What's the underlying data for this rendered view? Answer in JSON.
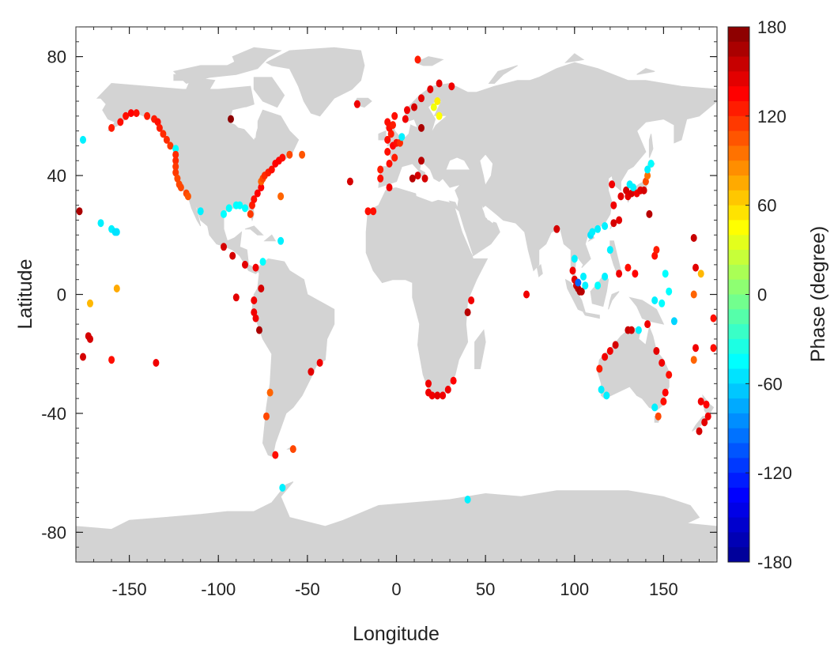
{
  "chart_data": {
    "type": "scatter",
    "title": "",
    "xlabel": "Longitude",
    "ylabel": "Latitude",
    "xlim": [
      -180,
      180
    ],
    "ylim": [
      -90,
      90
    ],
    "xticks": [
      -150,
      -100,
      -50,
      0,
      50,
      100,
      150
    ],
    "yticks": [
      80,
      40,
      0,
      -40,
      -80
    ],
    "grid": false,
    "basemap": "world land masses (light gray)",
    "colorbar": {
      "label": "Phase (degree)",
      "range": [
        -180,
        180
      ],
      "ticks": [
        180,
        120,
        60,
        0,
        -60,
        -120,
        -180
      ],
      "colormap": "jet",
      "colors": [
        "#00008f",
        "#0000ff",
        "#0080ff",
        "#00ffff",
        "#80ff80",
        "#ffff00",
        "#ff8000",
        "#ff0000",
        "#800000"
      ]
    },
    "points": [
      {
        "lon": -178,
        "lat": 28,
        "phase": 165
      },
      {
        "lon": -176,
        "lat": -21,
        "phase": 150
      },
      {
        "lon": -173,
        "lat": -14,
        "phase": 150
      },
      {
        "lon": -172,
        "lat": -15,
        "phase": 150
      },
      {
        "lon": -172,
        "lat": -3,
        "phase": 70
      },
      {
        "lon": -176,
        "lat": 52,
        "phase": -50
      },
      {
        "lon": -166,
        "lat": 24,
        "phase": -50
      },
      {
        "lon": -160,
        "lat": 22,
        "phase": -50
      },
      {
        "lon": -158,
        "lat": 21,
        "phase": -55
      },
      {
        "lon": -157,
        "lat": 21,
        "phase": -55
      },
      {
        "lon": -157,
        "lat": 2,
        "phase": 75
      },
      {
        "lon": -160,
        "lat": -22,
        "phase": 130
      },
      {
        "lon": -135,
        "lat": -23,
        "phase": 140
      },
      {
        "lon": -160,
        "lat": 56,
        "phase": 125
      },
      {
        "lon": -155,
        "lat": 58,
        "phase": 130
      },
      {
        "lon": -152,
        "lat": 60,
        "phase": 130
      },
      {
        "lon": -149,
        "lat": 61,
        "phase": 135
      },
      {
        "lon": -146,
        "lat": 61,
        "phase": 130
      },
      {
        "lon": -140,
        "lat": 60,
        "phase": 125
      },
      {
        "lon": -136,
        "lat": 59,
        "phase": 125
      },
      {
        "lon": -134,
        "lat": 58,
        "phase": 130
      },
      {
        "lon": -133,
        "lat": 56,
        "phase": 125
      },
      {
        "lon": -131,
        "lat": 54,
        "phase": 120
      },
      {
        "lon": -129,
        "lat": 52,
        "phase": 120
      },
      {
        "lon": -127,
        "lat": 50,
        "phase": 115
      },
      {
        "lon": -124,
        "lat": 49,
        "phase": -45
      },
      {
        "lon": -124,
        "lat": 47,
        "phase": 120
      },
      {
        "lon": -124,
        "lat": 45,
        "phase": 120
      },
      {
        "lon": -124,
        "lat": 43,
        "phase": 115
      },
      {
        "lon": -124,
        "lat": 41,
        "phase": 115
      },
      {
        "lon": -123,
        "lat": 39,
        "phase": 110
      },
      {
        "lon": -122,
        "lat": 37,
        "phase": 110
      },
      {
        "lon": -121,
        "lat": 36,
        "phase": 110
      },
      {
        "lon": -118,
        "lat": 34,
        "phase": 110
      },
      {
        "lon": -117,
        "lat": 33,
        "phase": 105
      },
      {
        "lon": -93,
        "lat": 59,
        "phase": 175
      },
      {
        "lon": -110,
        "lat": 28,
        "phase": -50
      },
      {
        "lon": -97,
        "lat": 27,
        "phase": -45
      },
      {
        "lon": -94,
        "lat": 29,
        "phase": -45
      },
      {
        "lon": -90,
        "lat": 30,
        "phase": -45
      },
      {
        "lon": -88,
        "lat": 30,
        "phase": -45
      },
      {
        "lon": -85,
        "lat": 29,
        "phase": -45
      },
      {
        "lon": -82,
        "lat": 27,
        "phase": 115
      },
      {
        "lon": -81,
        "lat": 30,
        "phase": 125
      },
      {
        "lon": -80,
        "lat": 32,
        "phase": 130
      },
      {
        "lon": -78,
        "lat": 34,
        "phase": 135
      },
      {
        "lon": -76,
        "lat": 36,
        "phase": 135
      },
      {
        "lon": -76,
        "lat": 38,
        "phase": 100
      },
      {
        "lon": -75,
        "lat": 39,
        "phase": 110
      },
      {
        "lon": -74,
        "lat": 40,
        "phase": 120
      },
      {
        "lon": -72,
        "lat": 41,
        "phase": 125
      },
      {
        "lon": -70,
        "lat": 42,
        "phase": 130
      },
      {
        "lon": -68,
        "lat": 44,
        "phase": 135
      },
      {
        "lon": -66,
        "lat": 45,
        "phase": 135
      },
      {
        "lon": -64,
        "lat": 46,
        "phase": 130
      },
      {
        "lon": -60,
        "lat": 47,
        "phase": 110
      },
      {
        "lon": -53,
        "lat": 47,
        "phase": 105
      },
      {
        "lon": -65,
        "lat": 33,
        "phase": 100
      },
      {
        "lon": -65,
        "lat": 18,
        "phase": -50
      },
      {
        "lon": -97,
        "lat": 16,
        "phase": 150
      },
      {
        "lon": -92,
        "lat": 13,
        "phase": 150
      },
      {
        "lon": -85,
        "lat": 10,
        "phase": 145
      },
      {
        "lon": -79,
        "lat": 9,
        "phase": 140
      },
      {
        "lon": -75,
        "lat": 11,
        "phase": -45
      },
      {
        "lon": -90,
        "lat": -1,
        "phase": 145
      },
      {
        "lon": -80,
        "lat": -2,
        "phase": 140
      },
      {
        "lon": -80,
        "lat": -6,
        "phase": 140
      },
      {
        "lon": -79,
        "lat": -8,
        "phase": 140
      },
      {
        "lon": -77,
        "lat": -12,
        "phase": 165
      },
      {
        "lon": -76,
        "lat": 2,
        "phase": 150
      },
      {
        "lon": -71,
        "lat": -33,
        "phase": 100
      },
      {
        "lon": -73,
        "lat": -41,
        "phase": 110
      },
      {
        "lon": -68,
        "lat": -54,
        "phase": 130
      },
      {
        "lon": -58,
        "lat": -52,
        "phase": 110
      },
      {
        "lon": -48,
        "lat": -26,
        "phase": 145
      },
      {
        "lon": -43,
        "lat": -23,
        "phase": 140
      },
      {
        "lon": -64,
        "lat": -65,
        "phase": -50
      },
      {
        "lon": -26,
        "lat": 38,
        "phase": 150
      },
      {
        "lon": -22,
        "lat": 64,
        "phase": 140
      },
      {
        "lon": -16,
        "lat": 28,
        "phase": 130
      },
      {
        "lon": -13,
        "lat": 28,
        "phase": 130
      },
      {
        "lon": -4,
        "lat": 36,
        "phase": 140
      },
      {
        "lon": -9,
        "lat": 39,
        "phase": 130
      },
      {
        "lon": -9,
        "lat": 42,
        "phase": 125
      },
      {
        "lon": -4,
        "lat": 44,
        "phase": 130
      },
      {
        "lon": -1,
        "lat": 46,
        "phase": 125
      },
      {
        "lon": -5,
        "lat": 48,
        "phase": 130
      },
      {
        "lon": -2,
        "lat": 50,
        "phase": 135
      },
      {
        "lon": 0,
        "lat": 51,
        "phase": 130
      },
      {
        "lon": 2,
        "lat": 51,
        "phase": 120
      },
      {
        "lon": -5,
        "lat": 52,
        "phase": 130
      },
      {
        "lon": -3,
        "lat": 54,
        "phase": 125
      },
      {
        "lon": -4,
        "lat": 56,
        "phase": 130
      },
      {
        "lon": -2,
        "lat": 57,
        "phase": 125
      },
      {
        "lon": -5,
        "lat": 58,
        "phase": 130
      },
      {
        "lon": -1,
        "lat": 60,
        "phase": 130
      },
      {
        "lon": 3,
        "lat": 53,
        "phase": -50
      },
      {
        "lon": 5,
        "lat": 59,
        "phase": 140
      },
      {
        "lon": 6,
        "lat": 62,
        "phase": 140
      },
      {
        "lon": 10,
        "lat": 63,
        "phase": 150
      },
      {
        "lon": 14,
        "lat": 66,
        "phase": 145
      },
      {
        "lon": 19,
        "lat": 69,
        "phase": 145
      },
      {
        "lon": 24,
        "lat": 71,
        "phase": 145
      },
      {
        "lon": 31,
        "lat": 70,
        "phase": 140
      },
      {
        "lon": 12,
        "lat": 79,
        "phase": 125
      },
      {
        "lon": 21,
        "lat": 63,
        "phase": 40
      },
      {
        "lon": 23,
        "lat": 65,
        "phase": 50
      },
      {
        "lon": 24,
        "lat": 60,
        "phase": 45
      },
      {
        "lon": 14,
        "lat": 56,
        "phase": 165
      },
      {
        "lon": 14,
        "lat": 45,
        "phase": 160
      },
      {
        "lon": 12,
        "lat": 40,
        "phase": 150
      },
      {
        "lon": 16,
        "lat": 39,
        "phase": 150
      },
      {
        "lon": 9,
        "lat": 39,
        "phase": 160
      },
      {
        "lon": 18,
        "lat": -30,
        "phase": 140
      },
      {
        "lon": 18,
        "lat": -33,
        "phase": 140
      },
      {
        "lon": 20,
        "lat": -34,
        "phase": 140
      },
      {
        "lon": 23,
        "lat": -34,
        "phase": 145
      },
      {
        "lon": 26,
        "lat": -34,
        "phase": 140
      },
      {
        "lon": 29,
        "lat": -32,
        "phase": 140
      },
      {
        "lon": 32,
        "lat": -29,
        "phase": 135
      },
      {
        "lon": 40,
        "lat": -6,
        "phase": 160
      },
      {
        "lon": 42,
        "lat": -2,
        "phase": 140
      },
      {
        "lon": 40,
        "lat": -69,
        "phase": -50
      },
      {
        "lon": 73,
        "lat": 0,
        "phase": 140
      },
      {
        "lon": 90,
        "lat": 22,
        "phase": 150
      },
      {
        "lon": 99,
        "lat": 8,
        "phase": 140
      },
      {
        "lon": 100,
        "lat": 12,
        "phase": -50
      },
      {
        "lon": 100,
        "lat": 5,
        "phase": 145
      },
      {
        "lon": 101,
        "lat": 3,
        "phase": 150
      },
      {
        "lon": 102,
        "lat": 2,
        "phase": 160
      },
      {
        "lon": 103,
        "lat": 1,
        "phase": 165
      },
      {
        "lon": 104,
        "lat": 1,
        "phase": 160
      },
      {
        "lon": 102,
        "lat": 4,
        "phase": -100
      },
      {
        "lon": 105,
        "lat": 6,
        "phase": -50
      },
      {
        "lon": 106,
        "lat": 3,
        "phase": -50
      },
      {
        "lon": 109,
        "lat": 20,
        "phase": -55
      },
      {
        "lon": 110,
        "lat": 21,
        "phase": -50
      },
      {
        "lon": 113,
        "lat": 22,
        "phase": -50
      },
      {
        "lon": 117,
        "lat": 23,
        "phase": -50
      },
      {
        "lon": 120,
        "lat": 15,
        "phase": -50
      },
      {
        "lon": 122,
        "lat": 24,
        "phase": 150
      },
      {
        "lon": 125,
        "lat": 25,
        "phase": 145
      },
      {
        "lon": 122,
        "lat": 30,
        "phase": 140
      },
      {
        "lon": 121,
        "lat": 37,
        "phase": 140
      },
      {
        "lon": 126,
        "lat": 33,
        "phase": 145
      },
      {
        "lon": 129,
        "lat": 35,
        "phase": 150
      },
      {
        "lon": 130,
        "lat": 33,
        "phase": 145
      },
      {
        "lon": 132,
        "lat": 34,
        "phase": 150
      },
      {
        "lon": 135,
        "lat": 34,
        "phase": 140
      },
      {
        "lon": 137,
        "lat": 35,
        "phase": 145
      },
      {
        "lon": 139,
        "lat": 35,
        "phase": 150
      },
      {
        "lon": 140,
        "lat": 38,
        "phase": 110
      },
      {
        "lon": 141,
        "lat": 40,
        "phase": 95
      },
      {
        "lon": 141,
        "lat": 42,
        "phase": -50
      },
      {
        "lon": 143,
        "lat": 44,
        "phase": -45
      },
      {
        "lon": 133,
        "lat": 36,
        "phase": -50
      },
      {
        "lon": 131,
        "lat": 37,
        "phase": -50
      },
      {
        "lon": 142,
        "lat": 27,
        "phase": 160
      },
      {
        "lon": 113,
        "lat": 3,
        "phase": -45
      },
      {
        "lon": 117,
        "lat": 6,
        "phase": -50
      },
      {
        "lon": 125,
        "lat": 7,
        "phase": 140
      },
      {
        "lon": 130,
        "lat": 9,
        "phase": 130
      },
      {
        "lon": 134,
        "lat": 7,
        "phase": 135
      },
      {
        "lon": 145,
        "lat": 13,
        "phase": 130
      },
      {
        "lon": 146,
        "lat": 15,
        "phase": 125
      },
      {
        "lon": 151,
        "lat": 7,
        "phase": -45
      },
      {
        "lon": 153,
        "lat": 1,
        "phase": -45
      },
      {
        "lon": 145,
        "lat": -2,
        "phase": -50
      },
      {
        "lon": 149,
        "lat": -3,
        "phase": -45
      },
      {
        "lon": 156,
        "lat": -9,
        "phase": -60
      },
      {
        "lon": 167,
        "lat": 19,
        "phase": 155
      },
      {
        "lon": 168,
        "lat": 9,
        "phase": 145
      },
      {
        "lon": 171,
        "lat": 7,
        "phase": 70
      },
      {
        "lon": 167,
        "lat": 0,
        "phase": 100
      },
      {
        "lon": 168,
        "lat": -18,
        "phase": 140
      },
      {
        "lon": 167,
        "lat": -22,
        "phase": 100
      },
      {
        "lon": 178,
        "lat": -8,
        "phase": 130
      },
      {
        "lon": 178,
        "lat": -18,
        "phase": 130
      },
      {
        "lon": 115,
        "lat": -32,
        "phase": -50
      },
      {
        "lon": 118,
        "lat": -34,
        "phase": -50
      },
      {
        "lon": 114,
        "lat": -25,
        "phase": 125
      },
      {
        "lon": 117,
        "lat": -21,
        "phase": 140
      },
      {
        "lon": 120,
        "lat": -19,
        "phase": 140
      },
      {
        "lon": 123,
        "lat": -17,
        "phase": 150
      },
      {
        "lon": 130,
        "lat": -12,
        "phase": 155
      },
      {
        "lon": 132,
        "lat": -12,
        "phase": 150
      },
      {
        "lon": 136,
        "lat": -12,
        "phase": -50
      },
      {
        "lon": 141,
        "lat": -10,
        "phase": 140
      },
      {
        "lon": 146,
        "lat": -19,
        "phase": 145
      },
      {
        "lon": 149,
        "lat": -23,
        "phase": 140
      },
      {
        "lon": 153,
        "lat": -27,
        "phase": 130
      },
      {
        "lon": 151,
        "lat": -33,
        "phase": 135
      },
      {
        "lon": 150,
        "lat": -36,
        "phase": 130
      },
      {
        "lon": 147,
        "lat": -41,
        "phase": 110
      },
      {
        "lon": 145,
        "lat": -38,
        "phase": -50
      },
      {
        "lon": 171,
        "lat": -36,
        "phase": 140
      },
      {
        "lon": 174,
        "lat": -37,
        "phase": 135
      },
      {
        "lon": 175,
        "lat": -41,
        "phase": 140
      },
      {
        "lon": 173,
        "lat": -43,
        "phase": 145
      },
      {
        "lon": 170,
        "lat": -46,
        "phase": 150
      }
    ]
  }
}
